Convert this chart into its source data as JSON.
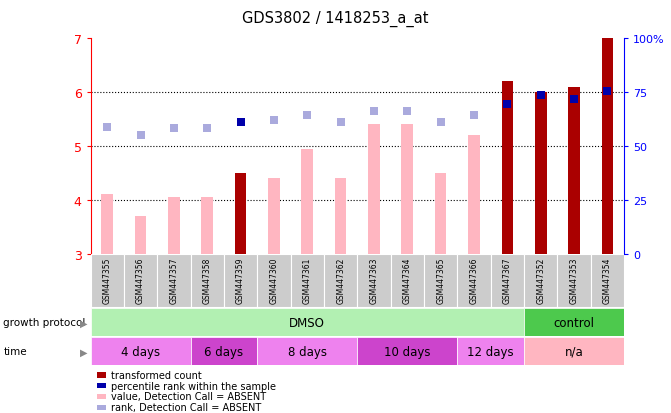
{
  "title": "GDS3802 / 1418253_a_at",
  "samples": [
    "GSM447355",
    "GSM447356",
    "GSM447357",
    "GSM447358",
    "GSM447359",
    "GSM447360",
    "GSM447361",
    "GSM447362",
    "GSM447363",
    "GSM447364",
    "GSM447365",
    "GSM447366",
    "GSM447367",
    "GSM447352",
    "GSM447353",
    "GSM447354"
  ],
  "bar_values": [
    4.1,
    3.7,
    4.05,
    4.05,
    4.5,
    4.4,
    4.95,
    4.4,
    5.4,
    5.4,
    4.5,
    5.2,
    6.2,
    6.0,
    6.1,
    7.0
  ],
  "bar_absent": [
    true,
    true,
    true,
    true,
    false,
    true,
    true,
    true,
    true,
    true,
    true,
    true,
    false,
    false,
    false,
    false
  ],
  "rank_values": [
    5.35,
    5.2,
    5.33,
    5.33,
    5.45,
    5.48,
    5.57,
    5.45,
    5.65,
    5.65,
    5.45,
    5.57,
    5.78,
    5.95,
    5.88,
    6.03
  ],
  "rank_absent": [
    true,
    true,
    true,
    true,
    false,
    true,
    true,
    true,
    true,
    true,
    true,
    true,
    false,
    false,
    false,
    false
  ],
  "ylim_left": [
    3,
    7
  ],
  "ylim_right": [
    0,
    100
  ],
  "right_ticks": [
    0,
    25,
    50,
    75,
    100
  ],
  "right_tick_labels": [
    "0",
    "25",
    "50",
    "75",
    "100%"
  ],
  "left_ticks": [
    3,
    4,
    5,
    6,
    7
  ],
  "growth_protocol_groups": [
    {
      "label": "DMSO",
      "start": 0,
      "end": 13,
      "color": "#b2f0b2"
    },
    {
      "label": "control",
      "start": 13,
      "end": 16,
      "color": "#4dc94d"
    }
  ],
  "time_groups": [
    {
      "label": "4 days",
      "start": 0,
      "end": 3,
      "color": "#ee82ee"
    },
    {
      "label": "6 days",
      "start": 3,
      "end": 5,
      "color": "#cc44cc"
    },
    {
      "label": "8 days",
      "start": 5,
      "end": 8,
      "color": "#ee82ee"
    },
    {
      "label": "10 days",
      "start": 8,
      "end": 11,
      "color": "#cc44cc"
    },
    {
      "label": "12 days",
      "start": 11,
      "end": 13,
      "color": "#ee82ee"
    },
    {
      "label": "n/a",
      "start": 13,
      "end": 16,
      "color": "#ffb6c1"
    }
  ],
  "color_bar_present": "#aa0000",
  "color_bar_absent": "#ffb6c1",
  "color_rank_present": "#0000aa",
  "color_rank_absent": "#aaaadd",
  "bar_width": 0.35,
  "rank_marker_size": 40,
  "background_color": "#ffffff",
  "plot_bg": "#ffffff",
  "growth_protocol_label": "growth protocol",
  "time_label": "time",
  "legend_items": [
    {
      "label": "transformed count",
      "color": "#aa0000"
    },
    {
      "label": "percentile rank within the sample",
      "color": "#0000aa"
    },
    {
      "label": "value, Detection Call = ABSENT",
      "color": "#ffb6c1"
    },
    {
      "label": "rank, Detection Call = ABSENT",
      "color": "#aaaadd"
    }
  ]
}
